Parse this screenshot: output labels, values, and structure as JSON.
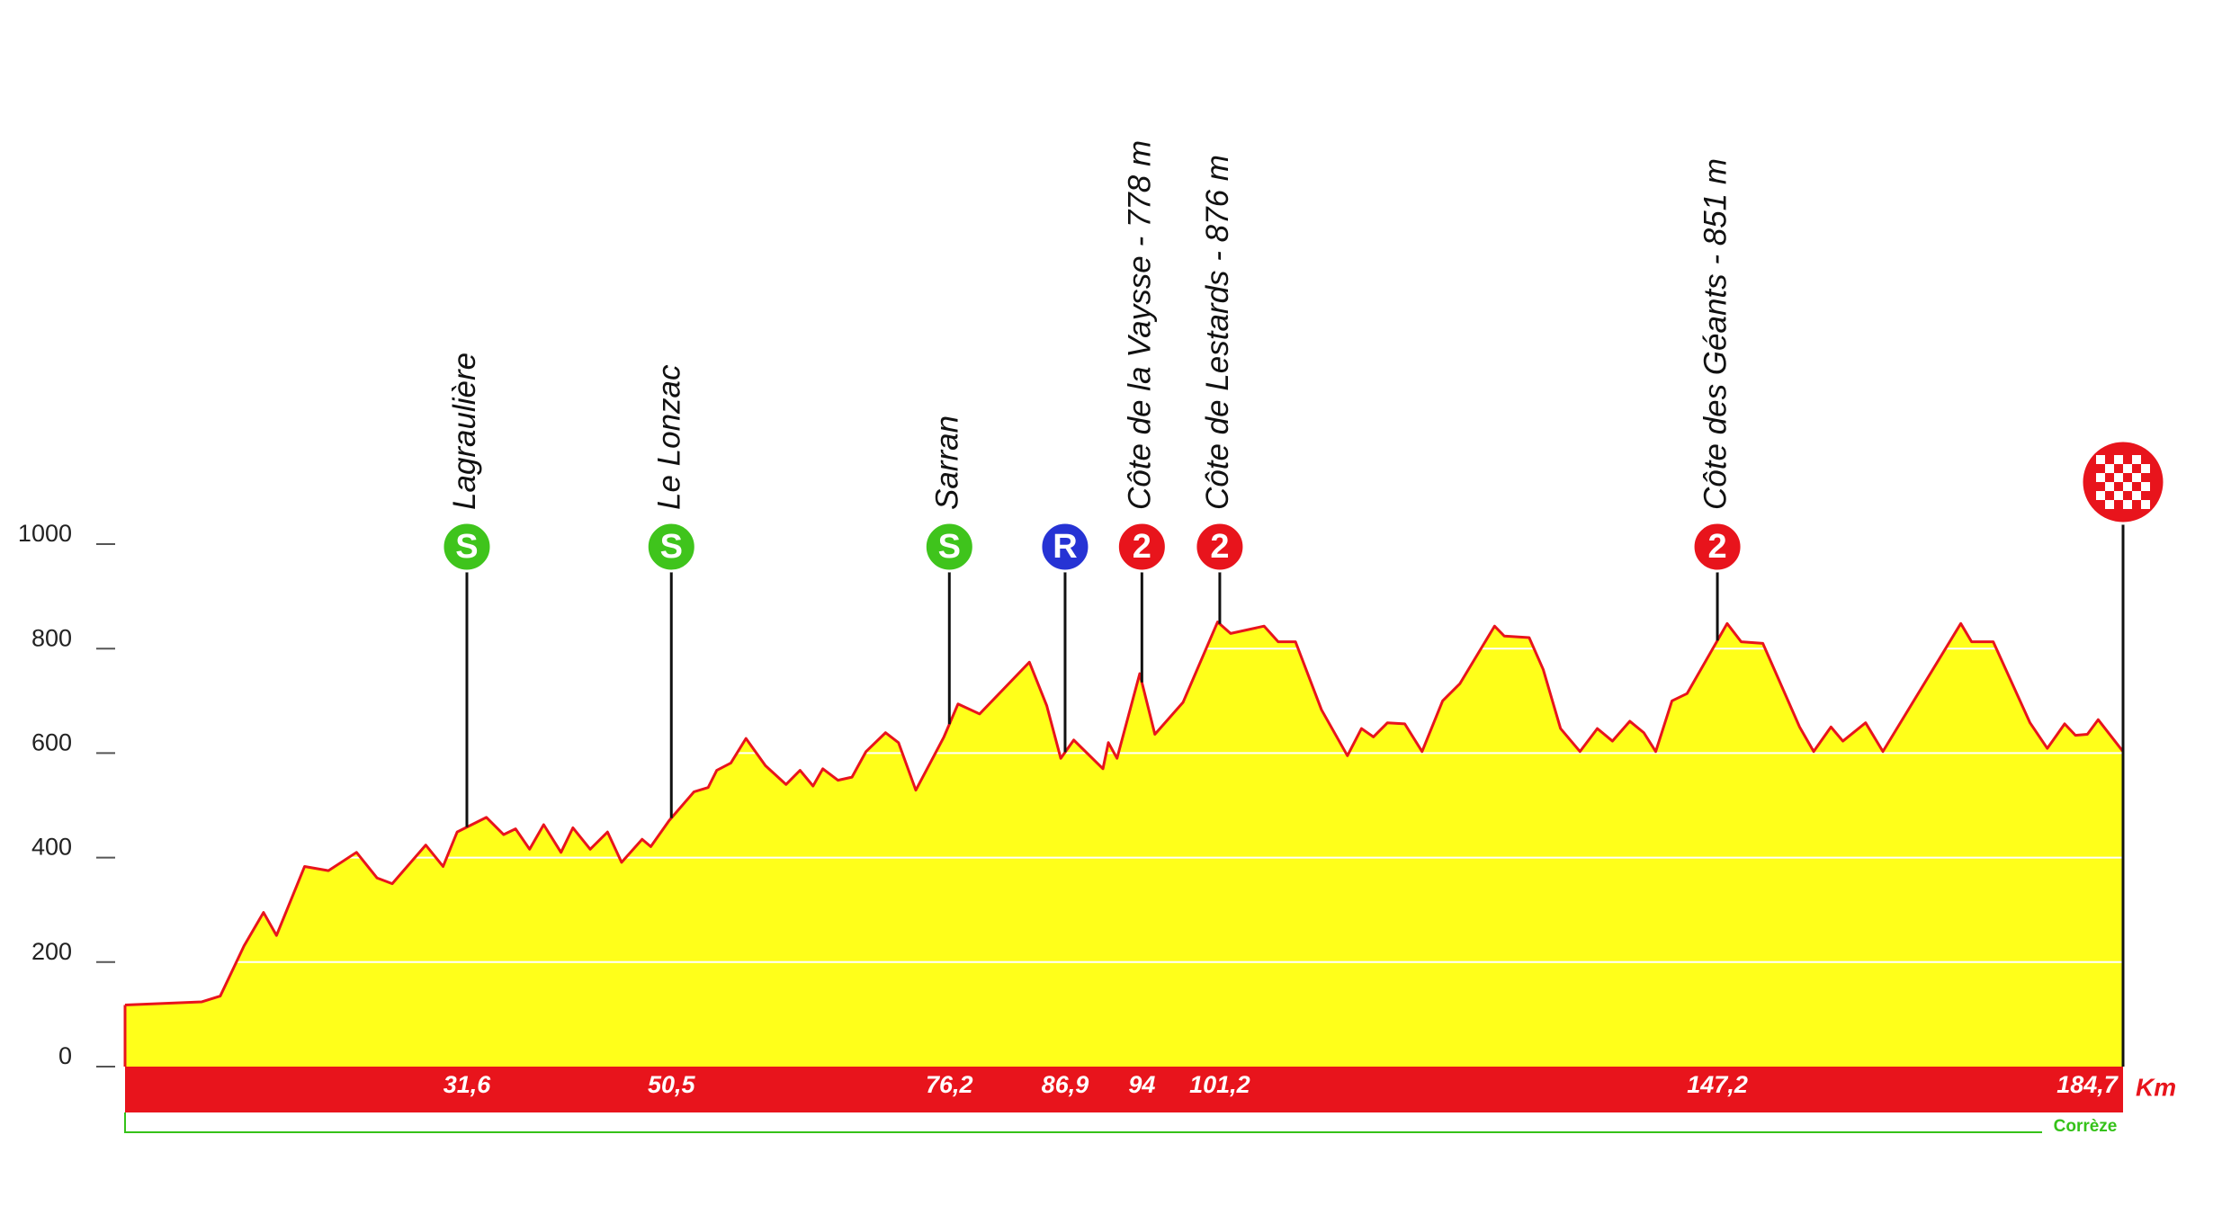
{
  "chart_data": {
    "type": "area",
    "x": [
      0,
      7.1,
      8.8,
      11.0,
      12.8,
      14.0,
      16.6,
      18.8,
      21.4,
      23.3,
      24.7,
      27.8,
      29.4,
      30.7,
      33.4,
      35.0,
      36.1,
      37.4,
      38.7,
      40.3,
      41.4,
      43.0,
      44.6,
      45.9,
      47.8,
      48.6,
      50.3,
      52.6,
      53.9,
      54.7,
      56.0,
      57.4,
      59.2,
      61.1,
      62.4,
      63.6,
      64.5,
      65.9,
      67.2,
      68.5,
      70.3,
      71.5,
      73.1,
      75.7,
      77.0,
      79.0,
      83.6,
      85.2,
      86.5,
      87.7,
      90.4,
      90.9,
      91.7,
      93.8,
      95.2,
      97.8,
      101.0,
      102.2,
      105.3,
      106.6,
      108.2,
      110.6,
      113.0,
      114.3,
      115.4,
      116.7,
      118.3,
      119.9,
      121.8,
      123.4,
      126.6,
      127.5,
      129.8,
      131.1,
      132.7,
      134.5,
      136.1,
      137.5,
      139.1,
      140.4,
      141.5,
      143.0,
      144.4,
      148.1,
      149.4,
      151.4,
      154.8,
      156.1,
      157.7,
      158.8,
      160.9,
      162.5,
      169.7,
      170.7,
      172.7,
      176.1,
      177.7,
      179.3,
      180.3,
      181.4,
      182.4,
      184.7
    ],
    "values": [
      118,
      124,
      135,
      231,
      295,
      251,
      383,
      375,
      410,
      361,
      350,
      424,
      383,
      449,
      477,
      444,
      455,
      416,
      463,
      410,
      457,
      416,
      449,
      391,
      435,
      421,
      471,
      526,
      534,
      567,
      581,
      628,
      576,
      540,
      567,
      537,
      570,
      548,
      554,
      603,
      639,
      620,
      529,
      631,
      694,
      675,
      774,
      691,
      590,
      625,
      570,
      620,
      590,
      752,
      636,
      697,
      851,
      829,
      843,
      813,
      813,
      683,
      595,
      647,
      631,
      658,
      656,
      603,
      700,
      733,
      843,
      824,
      821,
      760,
      647,
      603,
      647,
      623,
      661,
      639,
      603,
      700,
      714,
      848,
      813,
      810,
      650,
      603,
      650,
      623,
      658,
      603,
      848,
      813,
      813,
      658,
      609,
      656,
      634,
      636,
      664,
      603
    ],
    "xlim": [
      0,
      184.7
    ],
    "ylim": [
      0,
      1000
    ],
    "yticks": [
      0,
      200,
      400,
      600,
      800,
      1000
    ],
    "grid": true,
    "color": "#ffff1a",
    "line_color": "#e8141c",
    "unit": "Km",
    "region": "Corrèze",
    "markers": [
      {
        "x": 31.6,
        "label": "31,6",
        "name": "Lagraulière",
        "symbol": "S",
        "color": "#3fc41c"
      },
      {
        "x": 50.5,
        "label": "50,5",
        "name": "Le Lonzac",
        "symbol": "S",
        "color": "#3fc41c"
      },
      {
        "x": 76.2,
        "label": "76,2",
        "name": "Sarran",
        "symbol": "S",
        "color": "#3fc41c"
      },
      {
        "x": 86.9,
        "label": "86,9",
        "symbol": "R",
        "color": "#2633d4"
      },
      {
        "x": 94,
        "name": "Côte de la Vaysse - 778 m",
        "symbol": "2",
        "color": "#e8141c"
      },
      {
        "x": 101.2,
        "label": "101,2",
        "name": "Côte de Lestards - 876 m",
        "symbol": "2",
        "color": "#e8141c"
      },
      {
        "x": 147.2,
        "label": "147,2",
        "name": "Côte des Géants - 851 m",
        "symbol": "2",
        "color": "#e8141c"
      },
      {
        "x": 184.7,
        "label": "184,7",
        "kind": "finish",
        "color": "#e8141c"
      }
    ]
  }
}
